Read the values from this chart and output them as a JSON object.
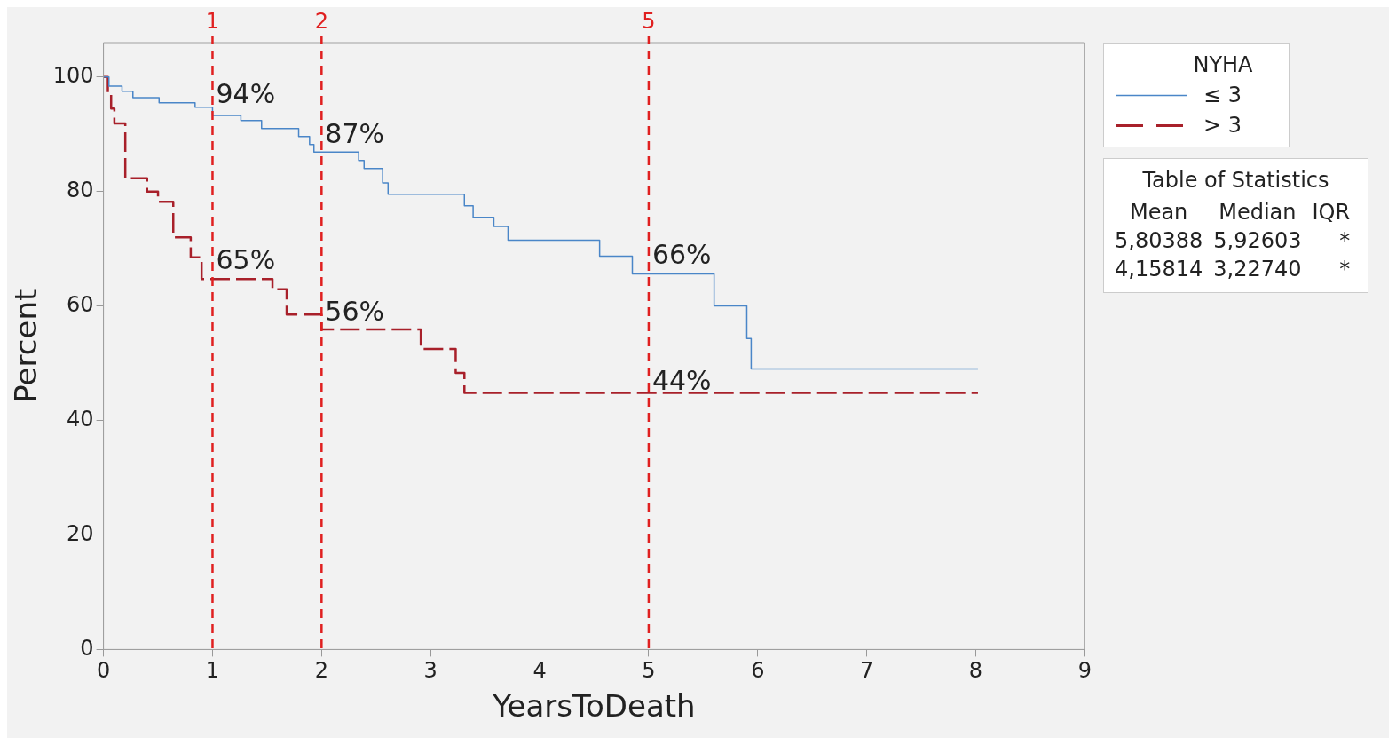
{
  "chart_data": {
    "type": "step",
    "xlabel": "YearsToDeath",
    "ylabel": "Percent",
    "legend_title": "NYHA",
    "legend": "right",
    "grid": false,
    "marker": "none",
    "xlim": [
      0,
      9
    ],
    "xticks": [
      0,
      1,
      2,
      3,
      4,
      5,
      6,
      7,
      8,
      9
    ],
    "ylim": [
      0,
      106
    ],
    "yticks": [
      0,
      20,
      40,
      60,
      80,
      100
    ],
    "series": [
      {
        "name": "≤ 3",
        "color": "#4a86c8",
        "line_style": "solid",
        "x": [
          0,
          0.05,
          0.17,
          0.27,
          0.51,
          0.84,
          1.0,
          1.26,
          1.45,
          1.79,
          1.89,
          1.93,
          2.34,
          2.39,
          2.56,
          2.61,
          3.31,
          3.39,
          3.58,
          3.71,
          4.55,
          4.85,
          5.6,
          5.9,
          5.94,
          8.02
        ],
        "values": [
          100,
          98.4,
          97.5,
          96.4,
          95.5,
          94.7,
          93.3,
          92.4,
          91.0,
          89.6,
          88.2,
          86.9,
          85.4,
          84.0,
          81.5,
          79.5,
          77.5,
          75.5,
          73.9,
          71.5,
          68.7,
          65.6,
          60.0,
          54.3,
          49.0,
          49.0
        ]
      },
      {
        "name": "> 3",
        "color": "#a8202a",
        "line_style": "dashed",
        "x": [
          0,
          0.04,
          0.07,
          0.1,
          0.2,
          0.4,
          0.5,
          0.64,
          0.8,
          0.9,
          1.55,
          1.68,
          2.0,
          2.91,
          3.23,
          3.31,
          8.02
        ],
        "values": [
          100,
          97,
          94.5,
          91.9,
          82.3,
          80.0,
          78.2,
          72.0,
          68.5,
          64.7,
          62.9,
          58.5,
          55.9,
          52.5,
          48.3,
          44.8,
          44.8
        ]
      }
    ],
    "ref_lines": [
      {
        "axis": "x",
        "value": 1,
        "label": "1",
        "color": "#e02020",
        "line_style": "dashed"
      },
      {
        "axis": "x",
        "value": 2,
        "label": "2",
        "color": "#e02020",
        "line_style": "dashed"
      },
      {
        "axis": "x",
        "value": 5,
        "label": "5",
        "color": "#e02020",
        "line_style": "dashed"
      }
    ],
    "annotations": [
      {
        "text": "94%",
        "x": 1,
        "y": 94
      },
      {
        "text": "87%",
        "x": 2,
        "y": 87
      },
      {
        "text": "65%",
        "x": 1,
        "y": 65
      },
      {
        "text": "56%",
        "x": 2,
        "y": 56
      },
      {
        "text": "66%",
        "x": 5,
        "y": 66
      },
      {
        "text": "44%",
        "x": 5,
        "y": 44
      },
      "Table of Statistics",
      "Mean",
      "Median",
      "IQR",
      "5,80388",
      "5,92603",
      "*",
      "4,15814",
      "3,22740",
      "*"
    ]
  }
}
